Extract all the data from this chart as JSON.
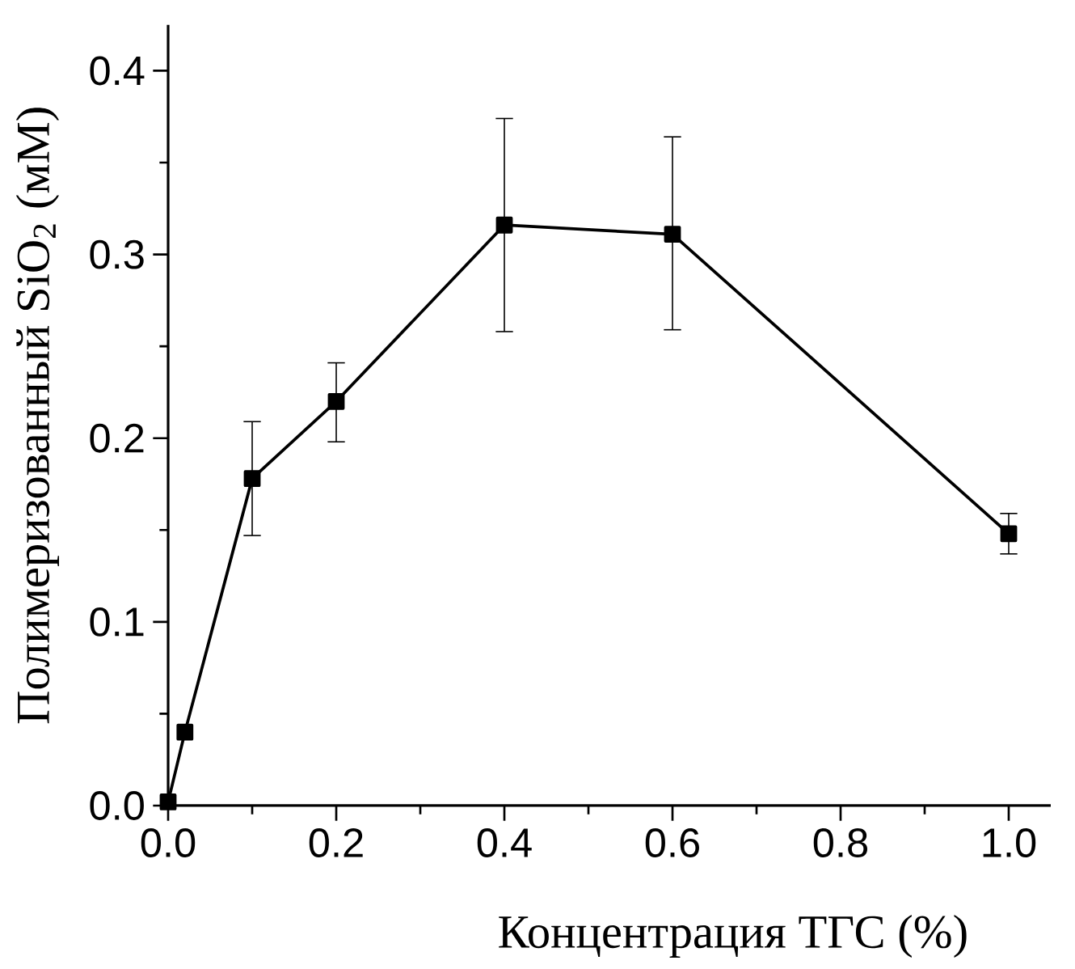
{
  "chart_data": {
    "type": "line",
    "xlabel": "Концентрация ТГС (%)",
    "ylabel": "Полимеризованный SiO$_{2}$ (мМ)",
    "x": [
      0,
      0.02,
      0.1,
      0.2,
      0.4,
      0.6,
      1.0
    ],
    "series": [
      {
        "color": "#000000",
        "values": [
          0.002,
          0.04,
          0.178,
          0.22,
          0.316,
          0.311,
          0.148
        ],
        "errors": [
          null,
          null,
          [
            0.147,
            0.209
          ],
          [
            0.198,
            0.241
          ],
          [
            0.258,
            0.374
          ],
          [
            0.259,
            0.364
          ],
          [
            0.137,
            0.159
          ]
        ]
      }
    ],
    "xlim": [
      0,
      1.05
    ],
    "ylim": [
      0,
      0.425
    ],
    "xticks": [
      {
        "value": 0,
        "label": "0.0"
      },
      0.2,
      0.4,
      0.6,
      0.8,
      {
        "value": 1.0,
        "label": "1.0"
      }
    ],
    "yticks": [
      {
        "value": 0,
        "label": "0.0"
      },
      0.1,
      0.2,
      0.3,
      0.4
    ],
    "marker": "square",
    "line_style": "solid",
    "grid": false
  }
}
